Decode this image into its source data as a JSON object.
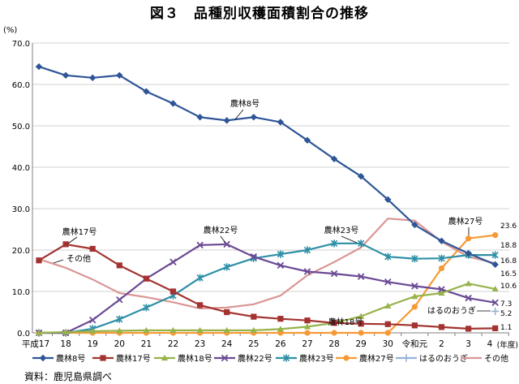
{
  "title": "図３　品種別収穫面積割合の推移",
  "source": "資料：鹿児島県調べ",
  "chart_data": {
    "type": "line",
    "title": "図３　品種別収穫面積割合の推移",
    "ylabel": "(%)",
    "xlabel": "(年度)",
    "ylim": [
      0,
      70
    ],
    "yticks": [
      "0.0",
      "10.0",
      "20.0",
      "30.0",
      "40.0",
      "50.0",
      "60.0",
      "70.0"
    ],
    "grid": "horizontal",
    "legend": "bottom",
    "categories": [
      "平成17",
      "18",
      "19",
      "20",
      "21",
      "22",
      "23",
      "24",
      "25",
      "26",
      "27",
      "28",
      "29",
      "30",
      "令和元",
      "2",
      "3",
      "4"
    ],
    "series": [
      {
        "name": "農林8号",
        "color": "#2E5597",
        "marker": "diamond",
        "values": [
          64.3,
          62.2,
          61.6,
          62.2,
          58.3,
          55.4,
          52.1,
          51.3,
          52.1,
          50.9,
          46.5,
          42.0,
          37.8,
          32.2,
          26.1,
          22.2,
          19.2,
          16.5
        ]
      },
      {
        "name": "農林17号",
        "color": "#A33230",
        "marker": "square",
        "values": [
          17.5,
          21.4,
          20.3,
          16.3,
          13.1,
          10.0,
          6.7,
          5.0,
          3.9,
          3.4,
          3.0,
          2.4,
          2.2,
          2.1,
          1.8,
          1.4,
          1.0,
          1.1
        ]
      },
      {
        "name": "農林18号",
        "color": "#97B34B",
        "marker": "triangle",
        "values": [
          0.0,
          0.2,
          0.4,
          0.5,
          0.6,
          0.6,
          0.6,
          0.6,
          0.6,
          0.9,
          1.5,
          2.4,
          4.0,
          6.5,
          8.8,
          9.6,
          11.9,
          10.6
        ]
      },
      {
        "name": "農林22号",
        "color": "#6A4A94",
        "marker": "x",
        "values": [
          0.0,
          0.0,
          3.1,
          8.0,
          13.1,
          17.1,
          21.2,
          21.4,
          18.4,
          16.3,
          14.8,
          14.3,
          13.6,
          12.3,
          11.3,
          10.5,
          8.4,
          7.3
        ]
      },
      {
        "name": "農林23号",
        "color": "#2E8FA6",
        "marker": "asterisk",
        "values": [
          0.0,
          0.0,
          1.0,
          3.3,
          6.1,
          9.0,
          13.3,
          15.9,
          18.0,
          19.0,
          20.0,
          21.6,
          21.6,
          18.4,
          17.9,
          18.0,
          18.8,
          18.8
        ]
      },
      {
        "name": "農林27号",
        "color": "#F59A35",
        "marker": "circle",
        "values": [
          0.0,
          0.0,
          0.0,
          0.0,
          0.0,
          0.0,
          0.0,
          0.0,
          0.0,
          0.0,
          0.0,
          0.0,
          0.0,
          0.0,
          6.3,
          15.6,
          22.8,
          23.6
        ]
      },
      {
        "name": "はるのおうぎ",
        "color": "#95B3D7",
        "marker": "plus",
        "values": [
          null,
          null,
          null,
          null,
          null,
          null,
          null,
          null,
          null,
          null,
          null,
          null,
          null,
          null,
          null,
          null,
          null,
          5.2
        ]
      },
      {
        "name": "その他",
        "color": "#D99694",
        "marker": "none",
        "values": [
          17.8,
          15.7,
          12.9,
          9.6,
          8.6,
          7.4,
          5.9,
          6.1,
          6.9,
          9.0,
          13.9,
          17.1,
          20.6,
          27.6,
          27.1,
          22.0,
          18.4,
          16.8
        ]
      }
    ],
    "annotations": [
      "農林8号",
      "農林17号",
      "その他",
      "農林22号",
      "農林23号",
      "農林18号",
      "農林27号",
      "はるのおうぎ"
    ],
    "end_labels": [
      "23.6",
      "18.8",
      "16.8",
      "16.5",
      "10.6",
      "7.3",
      "5.2",
      "1.1"
    ]
  }
}
